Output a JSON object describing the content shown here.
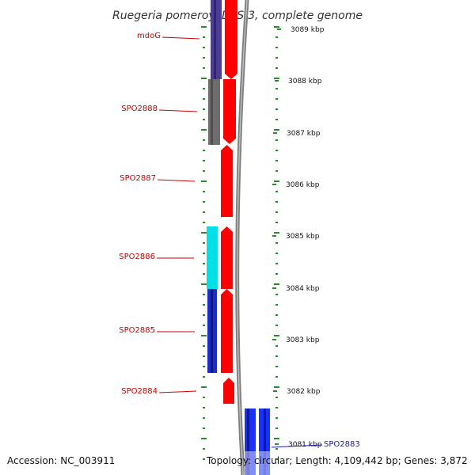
{
  "title": "Ruegeria pomeroyi DSS-3, complete genome",
  "accession_label": "Accession: NC_003911",
  "topology_label": "Topology: circular; Length: 4,109,442 bp; Genes: 3,872",
  "colors": {
    "forward_arrow": "#ff0000",
    "backbone": "#808080",
    "ticks": "#2d8a2d",
    "gene_label_forward": "#cc0000",
    "gene_label_reverse": "#1a1aa8"
  },
  "scale_labels": [
    "3089 kbp",
    "3088 kbp",
    "3087 kbp",
    "3086 kbp",
    "3085 kbp",
    "3084 kbp",
    "3083 kbp",
    "3082 kbp",
    "3081 kbp"
  ],
  "genes": [
    {
      "label": "mdoG",
      "strand": "forward",
      "color": "#4b3d99"
    },
    {
      "label": "SPO2888",
      "strand": "forward",
      "color": "#6e6e6e"
    },
    {
      "label": "SPO2887",
      "strand": "forward",
      "color": ""
    },
    {
      "label": "SPO2886",
      "strand": "forward",
      "color": "#00e0e8"
    },
    {
      "label": "SPO2885",
      "strand": "forward",
      "color": "#1a2bd0"
    },
    {
      "label": "SPO2884",
      "strand": "forward",
      "color": ""
    },
    {
      "label": "SPO2883",
      "strand": "reverse",
      "color": "#1a30ff"
    }
  ]
}
